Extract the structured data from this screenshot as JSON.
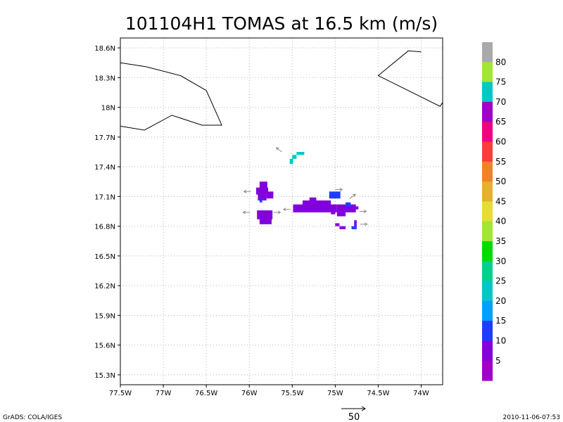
{
  "title": "101104H1 TOMAS at 16.5 km (m/s)",
  "footer_left": "GrADS: COLA/IGES",
  "footer_right": "2010-11-06-07:53",
  "vector_scale_label": "50",
  "map": {
    "lon_range": [
      -77.5,
      -73.75
    ],
    "lat_range": [
      15.2,
      18.7
    ],
    "lon_ticks": [
      -77.5,
      -77,
      -76.5,
      -76,
      -75.5,
      -75,
      -74.5,
      -74
    ],
    "lon_tick_labels": [
      "77.5W",
      "77W",
      "76.5W",
      "76W",
      "75.5W",
      "75W",
      "74.5W",
      "74W"
    ],
    "lat_ticks": [
      15.3,
      15.6,
      15.9,
      16.2,
      16.5,
      16.8,
      17.1,
      17.4,
      17.7,
      18.0,
      18.3,
      18.6
    ],
    "lat_tick_labels": [
      "15.3N",
      "15.6N",
      "15.9N",
      "16.2N",
      "16.5N",
      "16.8N",
      "17.1N",
      "17.4N",
      "17.7N",
      "18N",
      "18.3N",
      "18.6N"
    ],
    "grid": "dotted",
    "coastlines": [
      {
        "name": "Jamaica",
        "points": [
          [
            -77.5,
            18.45
          ],
          [
            -77.2,
            18.41
          ],
          [
            -76.8,
            18.32
          ],
          [
            -76.5,
            18.17
          ],
          [
            -76.32,
            17.82
          ],
          [
            -76.55,
            17.82
          ],
          [
            -76.9,
            17.92
          ],
          [
            -77.22,
            17.77
          ],
          [
            -77.5,
            17.81
          ]
        ]
      },
      {
        "name": "Haiti",
        "points": [
          [
            -74.0,
            18.56
          ],
          [
            -74.15,
            18.57
          ],
          [
            -74.5,
            18.32
          ],
          [
            -73.78,
            18.01
          ],
          [
            -73.75,
            18.05
          ]
        ]
      }
    ]
  },
  "colorbar": {
    "labels": [
      "5",
      "10",
      "15",
      "20",
      "25",
      "30",
      "35",
      "40",
      "45",
      "50",
      "55",
      "60",
      "65",
      "70",
      "75",
      "80"
    ],
    "colors": [
      "#a000c8",
      "#8200dc",
      "#1e3cff",
      "#00a0ff",
      "#00c8c8",
      "#00d28c",
      "#00dc00",
      "#a0e632",
      "#e6dc32",
      "#e6af2d",
      "#f08228",
      "#fa3c3c",
      "#f00082",
      "#a000c8",
      "#00c8c8",
      "#a0e632",
      "#aaaaaa"
    ]
  },
  "chart_data": {
    "type": "heatmap",
    "units": "m/s",
    "cells": [
      {
        "lon": -75.45,
        "lat": 17.52,
        "lon2": -75.36,
        "lat2": 17.55,
        "value": 22
      },
      {
        "lon": -75.5,
        "lat": 17.48,
        "lon2": -75.45,
        "lat2": 17.52,
        "value": 22
      },
      {
        "lon": -75.53,
        "lat": 17.43,
        "lon2": -75.49,
        "lat2": 17.48,
        "value": 22
      },
      {
        "lon": -75.88,
        "lat": 17.15,
        "lon2": -75.79,
        "lat2": 17.25,
        "value": 8
      },
      {
        "lon": -75.92,
        "lat": 17.12,
        "lon2": -75.78,
        "lat2": 17.19,
        "value": 8
      },
      {
        "lon": -75.9,
        "lat": 17.06,
        "lon2": -75.8,
        "lat2": 17.12,
        "value": 8
      },
      {
        "lon": -75.8,
        "lat": 17.08,
        "lon2": -75.72,
        "lat2": 17.15,
        "value": 8
      },
      {
        "lon": -75.88,
        "lat": 17.04,
        "lon2": -75.85,
        "lat2": 17.08,
        "value": 12
      },
      {
        "lon": -75.91,
        "lat": 16.87,
        "lon2": -75.73,
        "lat2": 16.96,
        "value": 8
      },
      {
        "lon": -75.88,
        "lat": 16.82,
        "lon2": -75.74,
        "lat2": 16.88,
        "value": 8
      },
      {
        "lon": -75.49,
        "lat": 16.94,
        "lon2": -74.98,
        "lat2": 17.02,
        "value": 8
      },
      {
        "lon": -75.38,
        "lat": 17.0,
        "lon2": -75.05,
        "lat2": 17.06,
        "value": 8
      },
      {
        "lon": -75.3,
        "lat": 17.06,
        "lon2": -75.22,
        "lat2": 17.09,
        "value": 8
      },
      {
        "lon": -75.07,
        "lat": 17.08,
        "lon2": -74.94,
        "lat2": 17.15,
        "value": 14
      },
      {
        "lon": -74.98,
        "lat": 16.94,
        "lon2": -74.76,
        "lat2": 17.02,
        "value": 8
      },
      {
        "lon": -74.88,
        "lat": 17.0,
        "lon2": -74.82,
        "lat2": 17.04,
        "value": 14
      },
      {
        "lon": -74.81,
        "lat": 16.97,
        "lon2": -74.73,
        "lat2": 17.0,
        "value": 8
      },
      {
        "lon": -74.98,
        "lat": 16.9,
        "lon2": -74.88,
        "lat2": 16.94,
        "value": 8
      },
      {
        "lon": -75.05,
        "lat": 16.92,
        "lon2": -75.0,
        "lat2": 16.95,
        "value": 8
      },
      {
        "lon": -75.0,
        "lat": 16.8,
        "lon2": -74.95,
        "lat2": 16.83,
        "value": 8
      },
      {
        "lon": -74.95,
        "lat": 16.77,
        "lon2": -74.88,
        "lat2": 16.8,
        "value": 8
      },
      {
        "lon": -74.81,
        "lat": 16.77,
        "lon2": -74.75,
        "lat2": 16.8,
        "value": 14
      },
      {
        "lon": -74.78,
        "lat": 16.8,
        "lon2": -74.75,
        "lat2": 16.86,
        "value": 8
      }
    ],
    "vectors": [
      {
        "lon": -75.62,
        "lat": 17.55,
        "dir": "nw"
      },
      {
        "lon": -75.98,
        "lat": 17.15,
        "dir": "w"
      },
      {
        "lon": -75.99,
        "lat": 16.94,
        "dir": "w"
      },
      {
        "lon": -75.72,
        "lat": 16.94,
        "dir": "e"
      },
      {
        "lon": -75.52,
        "lat": 16.97,
        "dir": "w"
      },
      {
        "lon": -75.0,
        "lat": 17.17,
        "dir": "e"
      },
      {
        "lon": -74.83,
        "lat": 17.08,
        "dir": "ne"
      },
      {
        "lon": -74.72,
        "lat": 16.95,
        "dir": "e"
      },
      {
        "lon": -74.71,
        "lat": 16.82,
        "dir": "e"
      }
    ]
  }
}
